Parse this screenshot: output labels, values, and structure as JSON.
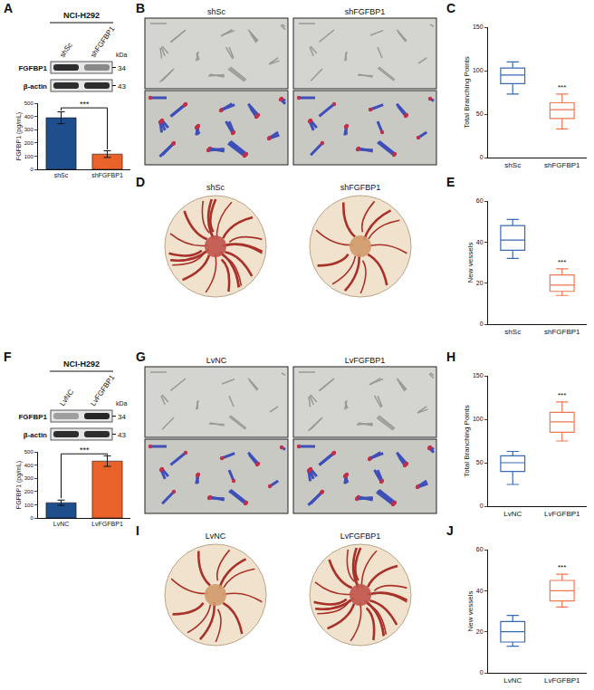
{
  "letters": [
    "A",
    "B",
    "C",
    "D",
    "E",
    "F",
    "G",
    "H",
    "I",
    "J"
  ],
  "blots": [
    {
      "cell_line": "NCI-H292",
      "lanes": [
        "shSc",
        "shFGFBP1"
      ],
      "unit": "kDa",
      "bands": [
        {
          "label": "FGFBP1",
          "kda": 34
        },
        {
          "label": "β-actin",
          "kda": 43
        }
      ]
    },
    {
      "cell_line": "NCI-H292",
      "lanes": [
        "LvNC",
        "LvFGFBP1"
      ],
      "unit": "kDa",
      "bands": [
        {
          "label": "FGFBP1",
          "kda": 34
        },
        {
          "label": "β-actin",
          "kda": 43
        }
      ]
    }
  ],
  "tube_images": [
    {
      "labels": [
        "shSc",
        "shFGFBP1"
      ]
    },
    {
      "labels": [
        "LvNC",
        "LvFGFBP1"
      ]
    }
  ],
  "cam_images": [
    {
      "labels": [
        "shSc",
        "shFGFBP1"
      ]
    },
    {
      "labels": [
        "LvNC",
        "LvFGFBP1"
      ]
    }
  ],
  "chart_data": [
    {
      "type": "bar",
      "categories": [
        "shSc",
        "shFGFBP1"
      ],
      "values": [
        390,
        115
      ],
      "errors": [
        45,
        25
      ],
      "colors": [
        "#1f4e8c",
        "#e8622a"
      ],
      "ylabel": "FGFBP1 (pg/mL)",
      "ylim": [
        0,
        500
      ],
      "yticks": [
        0,
        100,
        200,
        300,
        400,
        500
      ],
      "significance": {
        "text": "***",
        "y": 465,
        "ends": [
          445,
          150
        ]
      }
    },
    {
      "type": "box",
      "categories": [
        "shSc",
        "shFGFBP1"
      ],
      "boxes": [
        {
          "min": 73,
          "q1": 85,
          "median": 95,
          "q3": 103,
          "max": 110
        },
        {
          "min": 33,
          "q1": 45,
          "median": 55,
          "q3": 63,
          "max": 73
        }
      ],
      "colors": [
        "#3a6ab0",
        "#f07850"
      ],
      "ylabel": "Total Branching Points",
      "ylim": [
        0,
        150
      ],
      "yticks": [
        0,
        50,
        100,
        150
      ],
      "significance": {
        "text": "***",
        "at": 1
      }
    },
    {
      "type": "box",
      "categories": [
        "shSc",
        "shFGFBP1"
      ],
      "boxes": [
        {
          "min": 32,
          "q1": 36,
          "median": 41,
          "q3": 48,
          "max": 51
        },
        {
          "min": 14,
          "q1": 16,
          "median": 19,
          "q3": 24,
          "max": 27
        }
      ],
      "colors": [
        "#3a6ab0",
        "#f07850"
      ],
      "ylabel": "New vessels",
      "ylim": [
        0,
        60
      ],
      "yticks": [
        0,
        20,
        40,
        60
      ],
      "significance": {
        "text": "***",
        "at": 1
      }
    },
    {
      "type": "bar",
      "categories": [
        "LvNC",
        "LvFGFBP1"
      ],
      "values": [
        115,
        430
      ],
      "errors": [
        20,
        40
      ],
      "colors": [
        "#1f4e8c",
        "#e8622a"
      ],
      "ylabel": "FGFBP1 (pg/mL)",
      "ylim": [
        0,
        500
      ],
      "yticks": [
        0,
        100,
        200,
        300,
        400,
        500
      ],
      "significance": {
        "text": "***",
        "y": 485,
        "ends": [
          150,
          475
        ]
      }
    },
    {
      "type": "box",
      "categories": [
        "LvNC",
        "LvFGFBP1"
      ],
      "boxes": [
        {
          "min": 25,
          "q1": 40,
          "median": 50,
          "q3": 58,
          "max": 63
        },
        {
          "min": 75,
          "q1": 85,
          "median": 97,
          "q3": 108,
          "max": 120
        }
      ],
      "colors": [
        "#3a6ab0",
        "#f07850"
      ],
      "ylabel": "Total Branching Points",
      "ylim": [
        0,
        150
      ],
      "yticks": [
        0,
        50,
        100,
        150
      ],
      "significance": {
        "text": "***",
        "at": 1
      }
    },
    {
      "type": "box",
      "categories": [
        "LvNC",
        "LvFGFBP1"
      ],
      "boxes": [
        {
          "min": 13,
          "q1": 15,
          "median": 20,
          "q3": 25,
          "max": 28
        },
        {
          "min": 32,
          "q1": 35,
          "median": 40,
          "q3": 45,
          "max": 48
        }
      ],
      "colors": [
        "#3a6ab0",
        "#f07850"
      ],
      "ylabel": "New vessels",
      "ylim": [
        0,
        60
      ],
      "yticks": [
        0,
        20,
        40,
        60
      ],
      "significance": {
        "text": "***",
        "at": 1
      }
    }
  ]
}
